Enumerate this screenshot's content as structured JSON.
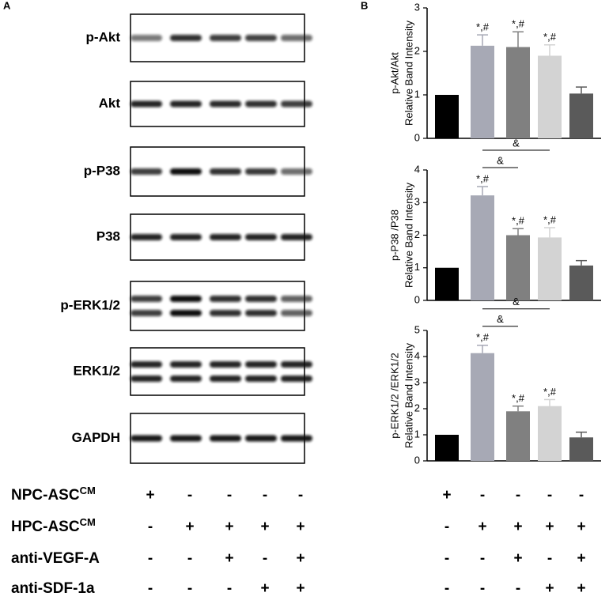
{
  "panel_labels": [
    "A",
    "B"
  ],
  "blots": [
    "p-Akt",
    "Akt",
    "p-P38",
    "P38",
    "p-ERK1/2",
    "ERK1/2",
    "GAPDH"
  ],
  "conditions": [
    {
      "label": "NPC-ASC",
      "sup": "CM",
      "signs": [
        "+",
        "-",
        "-",
        "-",
        "-"
      ]
    },
    {
      "label": "HPC-ASC",
      "sup": "CM",
      "signs": [
        "-",
        "+",
        "+",
        "+",
        "+"
      ]
    },
    {
      "label": "anti-VEGF-A",
      "signs": [
        "-",
        "-",
        "+",
        "-",
        "+"
      ]
    },
    {
      "label": "anti-SDF-1a",
      "signs": [
        "-",
        "-",
        "-",
        "+",
        "+"
      ]
    }
  ],
  "chart_data": [
    {
      "type": "bar",
      "ylabel_lines": [
        "p-Akt/Akt",
        "Relative Band Intensity"
      ],
      "values": [
        1,
        2.13,
        2.1,
        1.9,
        1.03
      ],
      "errors": [
        null,
        0.25,
        0.35,
        0.25,
        0.15
      ],
      "colors": [
        "#000000",
        "#a7a9b5",
        "#808080",
        "#d3d3d3",
        "#5a5a5a"
      ],
      "bar_annotations": [
        null,
        "*,#",
        "*,#",
        "*,#",
        null
      ],
      "bracket_labels": [],
      "ylim": [
        0,
        3
      ],
      "yticks": [
        0,
        1,
        2,
        3
      ]
    },
    {
      "type": "bar",
      "ylabel_lines": [
        "p-P38 /P38",
        "Relative Band Intensity"
      ],
      "values": [
        1,
        3.22,
        2.0,
        1.93,
        1.07
      ],
      "errors": [
        null,
        0.27,
        0.2,
        0.3,
        0.15
      ],
      "colors": [
        "#000000",
        "#a7a9b5",
        "#808080",
        "#d3d3d3",
        "#5a5a5a"
      ],
      "bar_annotations": [
        null,
        "*,#",
        "*,#",
        "*,#",
        null
      ],
      "bracket_labels": [
        "&",
        "&"
      ],
      "ylim": [
        0,
        4
      ],
      "yticks": [
        0,
        1,
        2,
        3,
        4
      ]
    },
    {
      "type": "bar",
      "ylabel_lines": [
        "p-ERK1/2 /ERK1/2",
        "Relative Band Intensity"
      ],
      "values": [
        1,
        4.13,
        1.9,
        2.1,
        0.9
      ],
      "errors": [
        null,
        0.3,
        0.2,
        0.25,
        0.2
      ],
      "colors": [
        "#000000",
        "#a7a9b5",
        "#808080",
        "#d3d3d3",
        "#5a5a5a"
      ],
      "bar_annotations": [
        null,
        "*,#",
        "*,#",
        "*,#",
        null
      ],
      "bracket_labels": [
        "&",
        "&"
      ],
      "ylim": [
        0,
        5
      ],
      "yticks": [
        0,
        1,
        2,
        3,
        4,
        5
      ]
    }
  ]
}
